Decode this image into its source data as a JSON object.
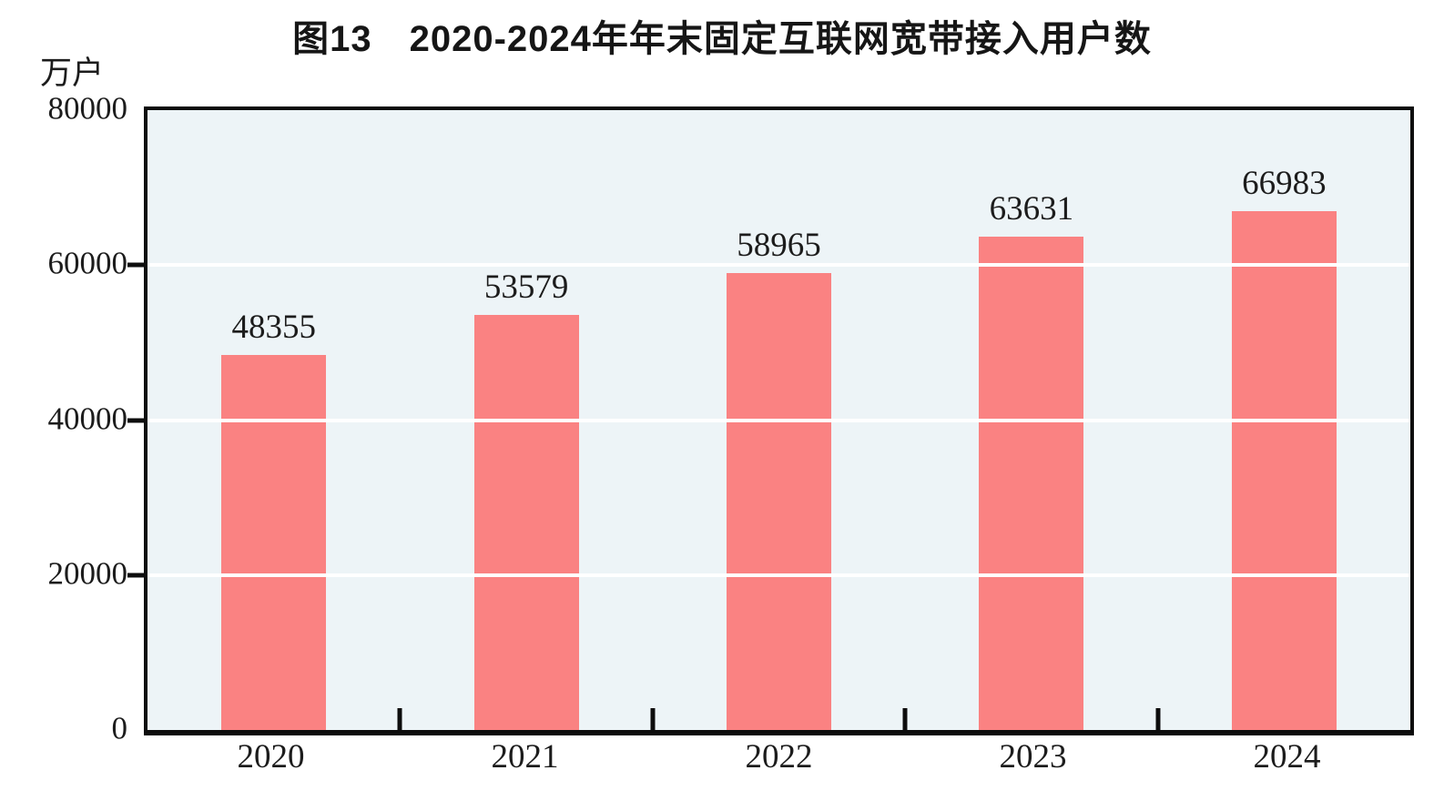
{
  "figure": {
    "title": "图13　2020-2024年年末固定互联网宽带接入用户数",
    "unit_label": "万户"
  },
  "chart_data": {
    "type": "bar",
    "title": "图13　2020-2024年年末固定互联网宽带接入用户数",
    "ylabel": "万户",
    "xlabel": "",
    "categories": [
      "2020",
      "2021",
      "2022",
      "2023",
      "2024"
    ],
    "values": [
      48355,
      53579,
      58965,
      63631,
      66983
    ],
    "data_labels": [
      "48355",
      "53579",
      "58965",
      "63631",
      "66983"
    ],
    "ylim": [
      0,
      80000
    ],
    "yticks": [
      0,
      20000,
      40000,
      60000,
      80000
    ],
    "ytick_labels": [
      "0",
      "20000",
      "40000",
      "60000",
      "80000"
    ],
    "grid": true,
    "legend": false,
    "colors": {
      "bar_fill": "#fa8282",
      "plot_background": "#edf4f7",
      "gridline": "#ffffff",
      "axis_frame": "#0d0d0d",
      "text": "#1c1c1c"
    }
  }
}
